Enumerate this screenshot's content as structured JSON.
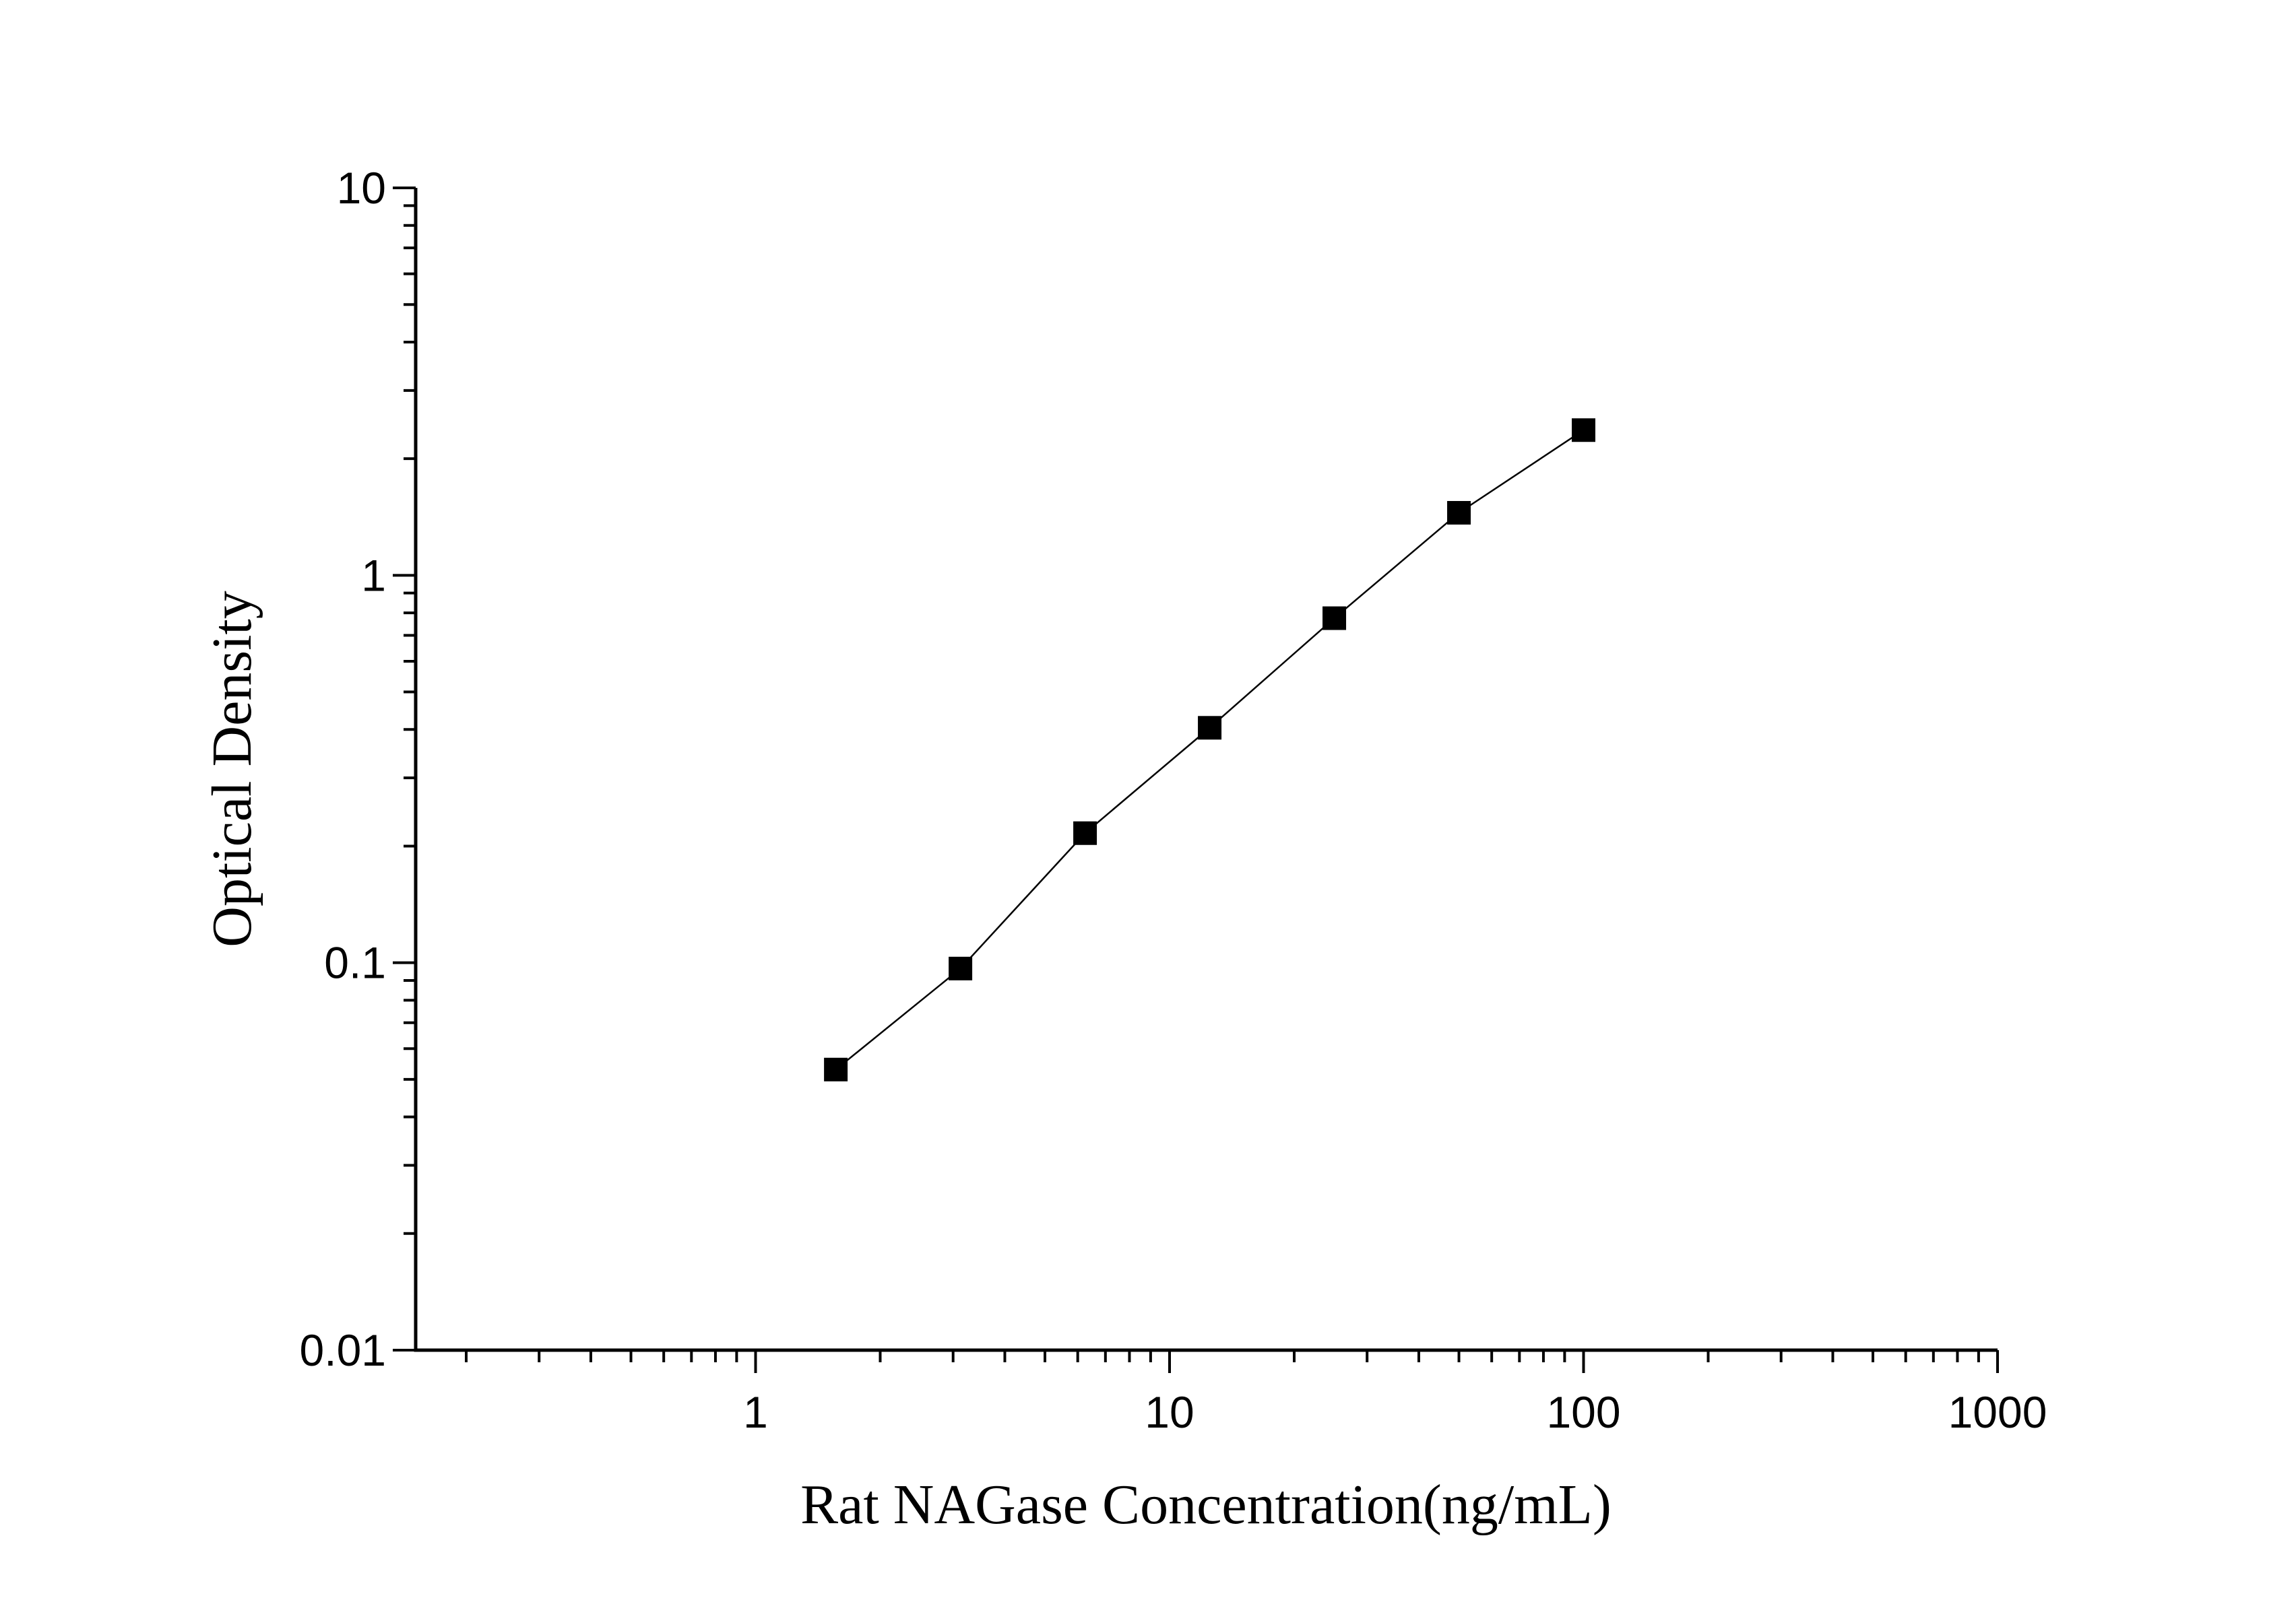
{
  "chart_data": {
    "type": "line",
    "x_label": "Rat NAGase Concentration(ng/mL)",
    "y_label": "Optical Density",
    "x": [
      1.5625,
      3.125,
      6.25,
      12.5,
      25,
      50,
      100
    ],
    "series": [
      {
        "color": "#000000",
        "values": [
          0.053,
          0.0966,
          0.216,
          0.404,
          0.775,
          1.45,
          2.37
        ]
      }
    ],
    "xlim": [
      0.151,
      1000
    ],
    "ylim": [
      0.01,
      10
    ],
    "xticks": [
      1,
      10,
      100,
      1000
    ],
    "yticks": [
      0.01,
      0.1,
      1,
      10
    ],
    "xscale": "log",
    "yscale": "log",
    "grid": false,
    "marker": "square"
  }
}
